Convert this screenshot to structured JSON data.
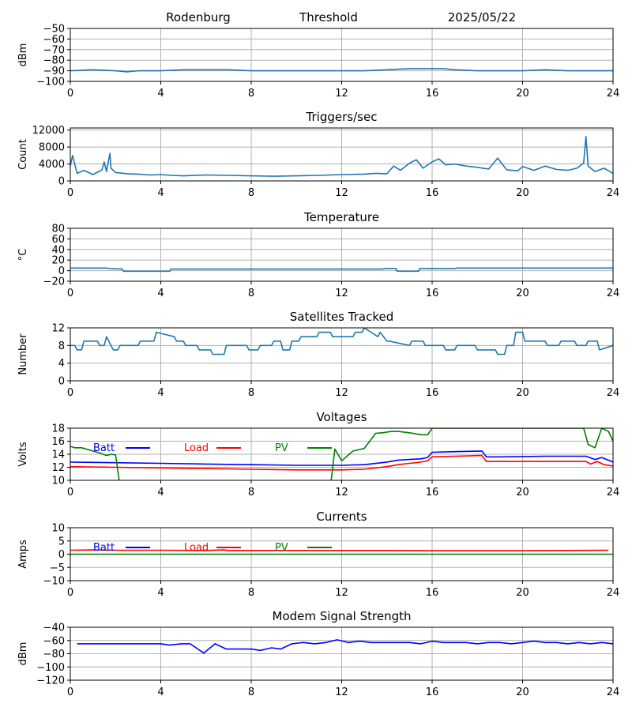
{
  "header": {
    "site": "Rodenburg",
    "mode": "Threshold",
    "date": "2025/05/22"
  },
  "chart_data": [
    {
      "type": "line",
      "title": "",
      "ylabel": "dBm",
      "ylim": [
        -100,
        -50
      ],
      "yticks": [
        -100,
        -90,
        -80,
        -70,
        -60,
        -50
      ],
      "xlim": [
        0,
        24
      ],
      "xticks": [
        0,
        4,
        8,
        12,
        16,
        20,
        24
      ],
      "grid": true,
      "legend": "none",
      "series": [
        {
          "color": "#1f77b4",
          "x": [
            0,
            1,
            2,
            2.5,
            3,
            4,
            5,
            6,
            7,
            8,
            9,
            10,
            11,
            12,
            13,
            14,
            15,
            15.8,
            16.5,
            17,
            18,
            19,
            20,
            21,
            22,
            23,
            24
          ],
          "y": [
            -90,
            -89,
            -90,
            -91,
            -90,
            -90,
            -89,
            -89,
            -89,
            -90,
            -90,
            -90,
            -90,
            -90,
            -90,
            -89,
            -88,
            -88,
            -88,
            -89,
            -90,
            -90,
            -90,
            -89,
            -90,
            -90,
            -90
          ]
        }
      ]
    },
    {
      "type": "line",
      "title": "Triggers/sec",
      "ylabel": "Count",
      "ylim": [
        0,
        12500
      ],
      "yticks": [
        0,
        4000,
        8000,
        12000
      ],
      "xlim": [
        0,
        24
      ],
      "xticks": [
        0,
        4,
        8,
        12,
        16,
        20,
        24
      ],
      "grid": true,
      "legend": "none",
      "series": [
        {
          "color": "#1f77b4",
          "x": [
            0,
            0.1,
            0.3,
            0.6,
            1,
            1.4,
            1.5,
            1.6,
            1.75,
            1.8,
            2,
            2.5,
            3,
            3.5,
            4,
            4.5,
            5,
            6,
            7,
            8,
            9,
            10,
            11,
            12,
            13,
            13.5,
            14,
            14.3,
            14.6,
            15,
            15.3,
            15.6,
            16,
            16.3,
            16.6,
            17,
            17.5,
            18,
            18.5,
            18.9,
            19.3,
            19.8,
            20,
            20.5,
            21,
            21.5,
            22,
            22.4,
            22.7,
            22.8,
            22.9,
            23.2,
            23.6,
            24
          ],
          "y": [
            3500,
            6000,
            1800,
            2500,
            1500,
            2600,
            4500,
            2200,
            6500,
            3000,
            2000,
            1700,
            1600,
            1400,
            1500,
            1300,
            1200,
            1400,
            1300,
            1200,
            1100,
            1200,
            1300,
            1500,
            1600,
            1800,
            1700,
            3500,
            2500,
            4200,
            5000,
            3000,
            4500,
            5200,
            3800,
            4000,
            3500,
            3200,
            2800,
            5400,
            2600,
            2400,
            3400,
            2500,
            3500,
            2700,
            2500,
            3000,
            4200,
            10500,
            3500,
            2200,
            3000,
            1800
          ]
        }
      ]
    },
    {
      "type": "line",
      "title": "Temperature",
      "ylabel": "°C",
      "ylim": [
        -20,
        80
      ],
      "yticks": [
        -20,
        0,
        20,
        40,
        60,
        80
      ],
      "xlim": [
        0,
        24
      ],
      "xticks": [
        0,
        4,
        8,
        12,
        16,
        20,
        24
      ],
      "grid": true,
      "legend": "none",
      "series": [
        {
          "color": "#1f77b4",
          "x": [
            0,
            1.6,
            1.7,
            2.3,
            2.35,
            4.4,
            4.45,
            4.9,
            5.1,
            7,
            10,
            13.8,
            13.9,
            14.4,
            14.45,
            15.4,
            15.45,
            17,
            17.1,
            20,
            24
          ],
          "y": [
            5,
            5,
            4,
            3,
            -1,
            -1,
            3,
            3,
            3,
            3,
            3,
            3,
            4,
            4,
            -1,
            -1,
            4,
            4,
            5,
            5,
            5
          ]
        }
      ]
    },
    {
      "type": "line",
      "title": "Satellites Tracked",
      "ylabel": "Number",
      "ylim": [
        0,
        12
      ],
      "yticks": [
        0,
        4,
        8,
        12
      ],
      "xlim": [
        0,
        24
      ],
      "xticks": [
        0,
        4,
        8,
        12,
        16,
        20,
        24
      ],
      "grid": true,
      "legend": "none",
      "series": [
        {
          "color": "#1f77b4",
          "x": [
            0,
            0.2,
            0.3,
            0.5,
            0.6,
            1.2,
            1.3,
            1.5,
            1.6,
            1.8,
            1.9,
            2.1,
            2.2,
            3,
            3.1,
            3.7,
            3.8,
            4.6,
            4.7,
            5,
            5.1,
            5.6,
            5.7,
            6.2,
            6.3,
            6.8,
            6.9,
            7.8,
            7.9,
            8.3,
            8.4,
            8.9,
            9,
            9.3,
            9.4,
            9.7,
            9.8,
            10.1,
            10.2,
            10.9,
            11,
            11.5,
            11.6,
            12.5,
            12.6,
            12.9,
            13,
            13.6,
            13.7,
            14,
            14.1,
            15,
            15.1,
            15.6,
            15.7,
            16.5,
            16.6,
            17,
            17.1,
            17.9,
            18,
            18.8,
            18.9,
            19.2,
            19.3,
            19.6,
            19.7,
            20,
            20.1,
            21,
            21.1,
            21.6,
            21.7,
            22.3,
            22.4,
            22.8,
            22.9,
            23.3,
            23.4,
            24
          ],
          "y": [
            8,
            8,
            7,
            7,
            9,
            9,
            8,
            8,
            10,
            8,
            7,
            7,
            8,
            8,
            9,
            9,
            11,
            10,
            9,
            9,
            8,
            8,
            7,
            7,
            6,
            6,
            8,
            8,
            7,
            7,
            8,
            8,
            9,
            9,
            7,
            7,
            9,
            9,
            10,
            10,
            11,
            11,
            10,
            10,
            11,
            11,
            12,
            10,
            11,
            9,
            9,
            8,
            9,
            9,
            8,
            8,
            7,
            7,
            8,
            8,
            7,
            7,
            6,
            6,
            8,
            8,
            11,
            11,
            9,
            9,
            8,
            8,
            9,
            9,
            8,
            8,
            9,
            9,
            7,
            8
          ]
        }
      ]
    },
    {
      "type": "line",
      "title": "Voltages",
      "ylabel": "Volts",
      "ylim": [
        10,
        18
      ],
      "yticks": [
        10,
        12,
        14,
        16,
        18
      ],
      "xlim": [
        0,
        24
      ],
      "xticks": [
        0,
        4,
        8,
        12,
        16,
        20,
        24
      ],
      "grid": true,
      "legend": "top-left",
      "series": [
        {
          "name": "Batt",
          "color": "#0000ff",
          "x": [
            0,
            2,
            4,
            6,
            8,
            10,
            12,
            13,
            14,
            14.5,
            15,
            15.5,
            15.8,
            16,
            17,
            18.2,
            18.4,
            19,
            21,
            22.8,
            23.2,
            23.5,
            24
          ],
          "y": [
            12.8,
            12.7,
            12.6,
            12.5,
            12.4,
            12.3,
            12.3,
            12.4,
            12.8,
            13.1,
            13.2,
            13.3,
            13.5,
            14.3,
            14.4,
            14.5,
            13.6,
            13.6,
            13.7,
            13.7,
            13.2,
            13.5,
            12.8
          ]
        },
        {
          "name": "Load",
          "color": "#ff0000",
          "x": [
            0,
            2,
            4,
            6,
            8,
            10,
            12,
            13,
            14,
            14.5,
            15,
            15.5,
            15.8,
            16,
            17,
            18.2,
            18.4,
            19,
            21,
            22.8,
            23,
            23.3,
            23.6,
            24
          ],
          "y": [
            12.1,
            12.0,
            11.9,
            11.8,
            11.7,
            11.6,
            11.6,
            11.7,
            12.1,
            12.4,
            12.6,
            12.8,
            13.0,
            13.6,
            13.7,
            13.8,
            12.9,
            12.9,
            12.9,
            12.9,
            12.5,
            12.9,
            12.4,
            12.2
          ]
        },
        {
          "name": "PV",
          "color": "#008000",
          "x": [
            0,
            0.2,
            0.5,
            1,
            1.3,
            1.6,
            1.8,
            2.0,
            2.2,
            11.5,
            11.7,
            12,
            12.5,
            13,
            13.5,
            13.8,
            14.2,
            14.5,
            15,
            15.5,
            15.8,
            16,
            22.7,
            22.9,
            23.2,
            23.5,
            23.8,
            24
          ],
          "y": [
            15.2,
            15.0,
            15.0,
            14.5,
            14.2,
            13.8,
            14.0,
            13.9,
            9,
            9,
            14.8,
            13.0,
            14.5,
            14.9,
            17.2,
            17.3,
            17.5,
            17.5,
            17.3,
            17.0,
            17.0,
            18.0,
            18.0,
            15.5,
            15.0,
            18.0,
            17.5,
            16.0
          ]
        }
      ]
    },
    {
      "type": "line",
      "title": "Currents",
      "ylabel": "Amps",
      "ylim": [
        -10,
        10
      ],
      "yticks": [
        -10,
        -5,
        0,
        5,
        10
      ],
      "xlim": [
        0,
        24
      ],
      "xticks": [
        0,
        4,
        8,
        12,
        16,
        20,
        24
      ],
      "grid": true,
      "legend": "top-left",
      "series": [
        {
          "name": "Batt",
          "color": "#0000ff",
          "x": [],
          "y": []
        },
        {
          "name": "Load",
          "color": "#ff0000",
          "x": [
            0,
            1,
            2,
            4,
            6,
            6.8,
            7,
            8,
            10,
            12,
            14,
            16,
            18,
            20,
            22,
            23.8
          ],
          "y": [
            1.5,
            1.6,
            1.5,
            1.5,
            1.4,
            1.6,
            1.4,
            1.4,
            1.4,
            1.4,
            1.4,
            1.3,
            1.3,
            1.3,
            1.4,
            1.5
          ]
        },
        {
          "name": "PV",
          "color": "#008000",
          "x": [
            0,
            24
          ],
          "y": [
            0,
            0
          ]
        }
      ]
    },
    {
      "type": "line",
      "title": "Modem Signal Strength",
      "ylabel": "dBm",
      "ylim": [
        -120,
        -40
      ],
      "yticks": [
        -120,
        -100,
        -80,
        -60,
        -40
      ],
      "xlim": [
        0,
        24
      ],
      "xticks": [
        0,
        4,
        8,
        12,
        16,
        20,
        24
      ],
      "grid": true,
      "legend": "none",
      "series": [
        {
          "color": "#0000ff",
          "x": [
            0.3,
            1,
            2,
            3,
            4,
            4.4,
            4.9,
            5.3,
            5.9,
            6.4,
            6.9,
            7.4,
            8,
            8.4,
            8.9,
            9.3,
            9.8,
            10.3,
            10.8,
            11.3,
            11.8,
            12.3,
            12.8,
            13.3,
            14,
            15,
            15.5,
            16,
            16.5,
            17,
            17.5,
            18,
            18.5,
            19,
            19.5,
            20,
            20.5,
            21,
            21.5,
            22,
            22.5,
            23,
            23.5,
            24
          ],
          "y": [
            -65,
            -65,
            -65,
            -65,
            -65,
            -67,
            -65,
            -65,
            -79,
            -65,
            -73,
            -73,
            -73,
            -75,
            -71,
            -73,
            -65,
            -63,
            -65,
            -63,
            -59,
            -63,
            -61,
            -63,
            -63,
            -63,
            -65,
            -61,
            -63,
            -63,
            -63,
            -65,
            -63,
            -63,
            -65,
            -63,
            -61,
            -63,
            -63,
            -65,
            -63,
            -65,
            -63,
            -65
          ]
        }
      ]
    }
  ]
}
